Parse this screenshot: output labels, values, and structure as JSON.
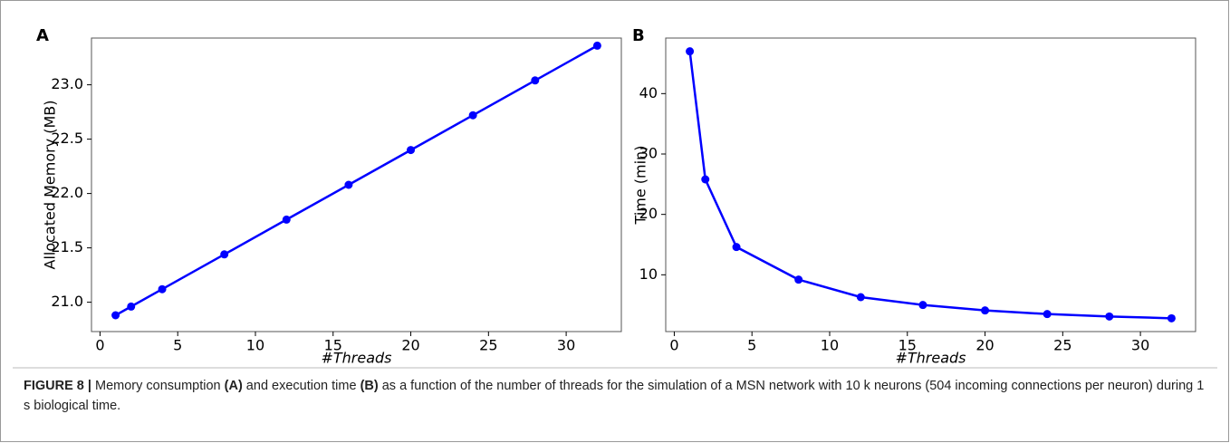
{
  "chart_data": [
    {
      "type": "line",
      "panel_label": "A",
      "xlabel": "#Threads",
      "ylabel": "Allocated Memory (MB)",
      "x": [
        1,
        2,
        4,
        8,
        12,
        16,
        20,
        24,
        28,
        32
      ],
      "values": [
        20.88,
        20.96,
        21.12,
        21.44,
        21.76,
        22.08,
        22.4,
        22.72,
        23.04,
        23.36
      ],
      "color": "#0000ff",
      "xlim": [
        -0.55,
        33.55
      ],
      "xticks": [
        0,
        5,
        10,
        15,
        20,
        25,
        30
      ],
      "ylim": [
        20.73,
        23.43
      ],
      "yticks": [
        {
          "value": 21,
          "label": "21.0"
        },
        21.5,
        {
          "value": 22,
          "label": "22.0"
        },
        22.5,
        {
          "value": 23,
          "label": "23.0"
        }
      ]
    },
    {
      "type": "line",
      "panel_label": "B",
      "xlabel": "#Threads",
      "ylabel": "Time (min)",
      "x": [
        1,
        2,
        4,
        8,
        12,
        16,
        20,
        24,
        28,
        32
      ],
      "values": [
        47,
        25.8,
        14.6,
        9.2,
        6.3,
        5.0,
        4.1,
        3.5,
        3.1,
        2.8
      ],
      "color": "#0000ff",
      "xlim": [
        -0.55,
        33.55
      ],
      "xticks": [
        0,
        5,
        10,
        15,
        20,
        25,
        30
      ],
      "ylim": [
        0.6,
        49.2
      ],
      "yticks": [
        10,
        20,
        30,
        40
      ]
    }
  ],
  "caption": [
    {
      "text": "FIGURE 8 |",
      "bold": true
    },
    {
      "text": " Memory consumption ",
      "bold": false
    },
    {
      "text": "(A)",
      "bold": true
    },
    {
      "text": " and execution time ",
      "bold": false
    },
    {
      "text": "(B)",
      "bold": true
    },
    {
      "text": " as a function of the number of threads for the simulation of a MSN network with 10 k neurons (504 incoming connections per neuron) during 1 s biological time.",
      "bold": false
    }
  ]
}
